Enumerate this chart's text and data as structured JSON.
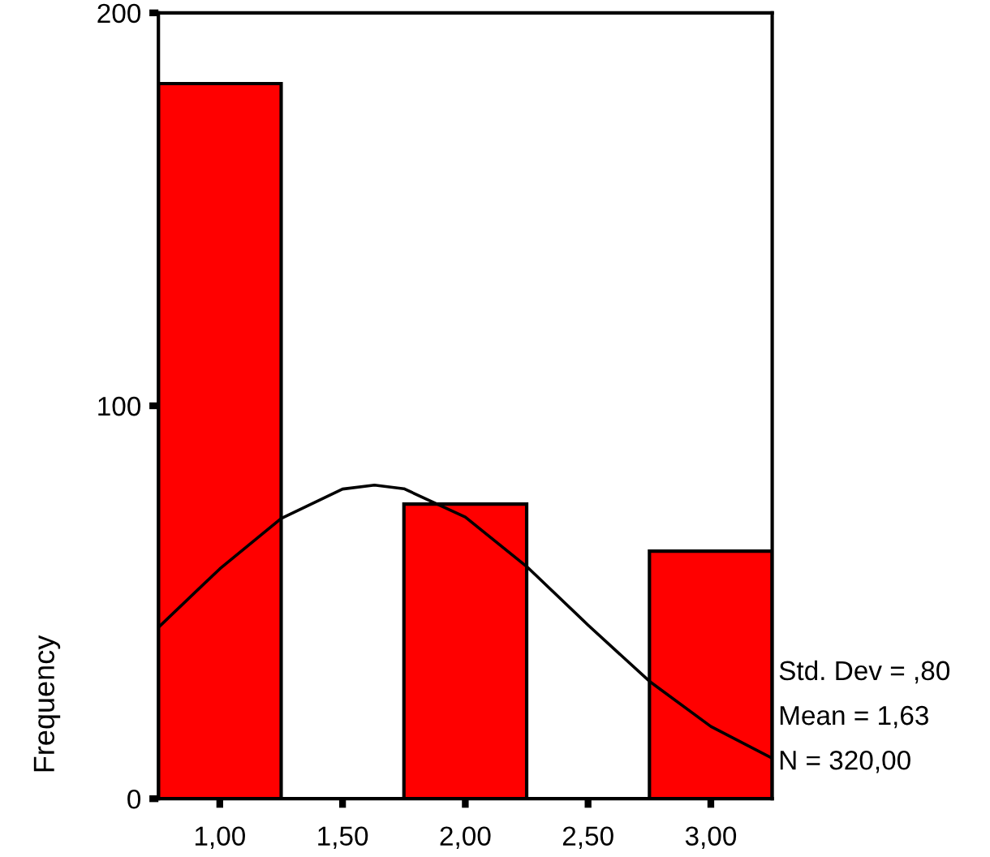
{
  "chart_data": {
    "type": "histogram",
    "ylabel": "Frequency",
    "bins": [
      0.75,
      1.25,
      1.75,
      2.25,
      2.75,
      3.25
    ],
    "values": [
      182,
      0,
      75,
      0,
      63
    ],
    "color": "#ff0000",
    "series": [
      {
        "type": "line",
        "color": "#000000",
        "x": [
          0.75,
          1.0,
          1.25,
          1.5,
          1.63,
          1.75,
          2.0,
          2.25,
          2.5,
          2.75,
          3.0,
          3.25
        ],
        "values": [
          43.6,
          58.5,
          71.3,
          78.8,
          79.8,
          78.9,
          71.7,
          59.1,
          44.2,
          29.9,
          18.4,
          10.3
        ]
      }
    ],
    "xlim": [
      0.75,
      3.25
    ],
    "xticks": [
      {
        "value": 1,
        "label": "1,00"
      },
      {
        "value": 1.5,
        "label": "1,50"
      },
      {
        "value": 2,
        "label": "2,00"
      },
      {
        "value": 2.5,
        "label": "2,50"
      },
      {
        "value": 3,
        "label": "3,00"
      }
    ],
    "ylim": [
      0,
      200
    ],
    "yticks": [
      0,
      100,
      200
    ],
    "annotations": [
      "Std. Dev = ,80",
      "Mean = 1,63",
      "N = 320,00"
    ],
    "grid": false,
    "legend": false
  }
}
